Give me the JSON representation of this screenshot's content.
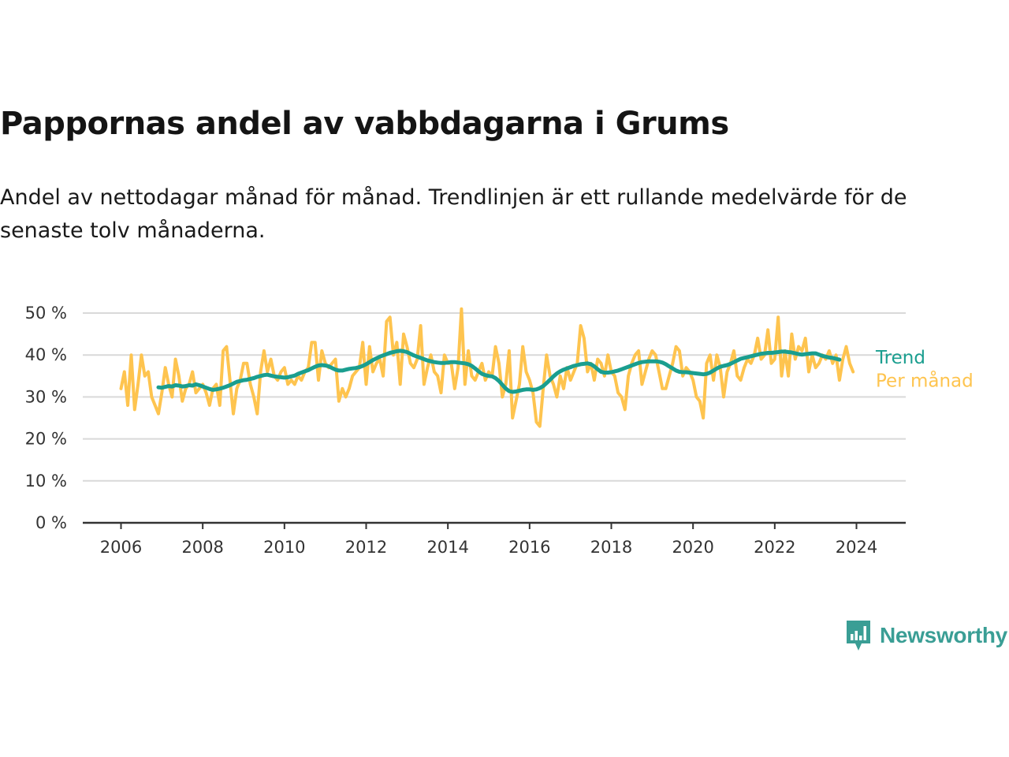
{
  "header": {
    "title": "Pappornas andel av vabbdagarna i Grums",
    "subtitle": "Andel av nettodagar månad för månad. Trendlinjen är ett rullande medelvärde för de senaste tolv månaderna."
  },
  "brand": {
    "name": "Newsworthy",
    "icon": "newsworthy-logo-icon",
    "color": "#3a9e95"
  },
  "chart_data": {
    "type": "line",
    "title": "Pappornas andel av vabbdagarna i Grums",
    "xlabel": "",
    "ylabel": "",
    "xlim": [
      "2006-01",
      "2024-05"
    ],
    "ylim": [
      0,
      50
    ],
    "x_ticks": [
      "2006",
      "2008",
      "2010",
      "2012",
      "2014",
      "2016",
      "2018",
      "2020",
      "2022",
      "2024"
    ],
    "y_ticks": [
      "0 %",
      "10 %",
      "20 %",
      "30 %",
      "40 %",
      "50 %"
    ],
    "grid": true,
    "legend_placement": "direct labels at line ends, right",
    "series": [
      {
        "name": "Per månad",
        "color": "#fec44f",
        "start": "2006-01",
        "values": [
          32,
          36,
          28,
          40,
          27,
          33,
          40,
          35,
          36,
          30,
          28,
          26,
          31,
          37,
          33,
          30,
          39,
          35,
          29,
          32,
          33,
          36,
          31,
          32,
          33,
          31,
          28,
          32,
          33,
          28,
          41,
          42,
          34,
          26,
          32,
          34,
          38,
          38,
          33,
          30,
          26,
          36,
          41,
          36,
          39,
          35,
          34,
          36,
          37,
          33,
          34,
          33,
          35,
          34,
          36,
          37,
          43,
          43,
          34,
          41,
          38,
          37,
          38,
          39,
          29,
          32,
          30,
          32,
          35,
          36,
          37,
          43,
          33,
          42,
          36,
          38,
          39,
          35,
          48,
          49,
          40,
          43,
          33,
          45,
          42,
          38,
          37,
          39,
          47,
          33,
          37,
          40,
          36,
          35,
          31,
          40,
          38,
          38,
          32,
          37,
          51,
          33,
          41,
          35,
          34,
          36,
          38,
          34,
          36,
          35,
          42,
          38,
          30,
          33,
          41,
          25,
          29,
          33,
          42,
          36,
          34,
          31,
          24,
          23,
          32,
          40,
          35,
          33,
          30,
          35,
          32,
          37,
          34,
          36,
          38,
          47,
          44,
          36,
          38,
          34,
          39,
          38,
          35,
          40,
          36,
          35,
          31,
          30,
          27,
          35,
          38,
          40,
          41,
          33,
          36,
          39,
          41,
          40,
          36,
          32,
          32,
          35,
          38,
          42,
          41,
          35,
          37,
          36,
          34,
          30,
          29,
          25,
          38,
          40,
          34,
          40,
          37,
          30,
          36,
          38,
          41,
          35,
          34,
          37,
          39,
          38,
          40,
          44,
          39,
          40,
          46,
          38,
          39,
          49,
          35,
          41,
          35,
          45,
          39,
          42,
          41,
          44,
          36,
          40,
          37,
          38,
          40,
          39,
          41,
          38,
          40,
          34,
          39,
          42,
          38,
          36
        ]
      },
      {
        "name": "Trend",
        "color": "#1a9e8f",
        "start": "2006-12",
        "values": [
          32.3,
          32.2,
          32.4,
          32.6,
          32.5,
          32.8,
          32.7,
          32.5,
          32.6,
          32.8,
          32.7,
          33.0,
          32.8,
          32.5,
          32.2,
          31.9,
          31.7,
          31.8,
          32.0,
          32.2,
          32.5,
          32.8,
          33.2,
          33.6,
          33.8,
          34.0,
          34.1,
          34.3,
          34.5,
          34.8,
          35.0,
          35.2,
          35.3,
          35.1,
          34.9,
          34.8,
          34.7,
          34.6,
          34.7,
          34.9,
          35.1,
          35.5,
          35.8,
          36.1,
          36.4,
          36.8,
          37.2,
          37.5,
          37.6,
          37.5,
          37.3,
          36.9,
          36.5,
          36.3,
          36.3,
          36.5,
          36.7,
          36.8,
          36.9,
          37.1,
          37.4,
          37.8,
          38.3,
          38.8,
          39.2,
          39.6,
          39.9,
          40.2,
          40.5,
          40.7,
          40.9,
          41.0,
          40.9,
          40.7,
          40.3,
          39.9,
          39.6,
          39.3,
          39.0,
          38.7,
          38.5,
          38.3,
          38.2,
          38.1,
          38.1,
          38.2,
          38.3,
          38.3,
          38.2,
          38.1,
          38.0,
          37.8,
          37.4,
          36.8,
          36.1,
          35.5,
          35.2,
          35.0,
          34.9,
          34.5,
          33.8,
          32.9,
          32.0,
          31.4,
          31.2,
          31.3,
          31.5,
          31.7,
          31.8,
          31.8,
          31.7,
          31.8,
          32.1,
          32.6,
          33.3,
          34.1,
          34.9,
          35.6,
          36.1,
          36.5,
          36.8,
          37.1,
          37.4,
          37.6,
          37.8,
          37.9,
          38.0,
          37.8,
          37.3,
          36.6,
          36.0,
          35.8,
          35.8,
          35.9,
          36.1,
          36.3,
          36.6,
          36.9,
          37.2,
          37.5,
          37.8,
          38.1,
          38.3,
          38.4,
          38.5,
          38.5,
          38.5,
          38.4,
          38.2,
          37.8,
          37.3,
          36.8,
          36.3,
          36.0,
          35.9,
          35.9,
          35.8,
          35.7,
          35.6,
          35.5,
          35.4,
          35.5,
          35.8,
          36.3,
          36.8,
          37.2,
          37.4,
          37.6,
          37.9,
          38.3,
          38.7,
          39.1,
          39.3,
          39.5,
          39.7,
          39.9,
          40.1,
          40.3,
          40.4,
          40.5,
          40.5,
          40.6,
          40.7,
          40.8,
          40.8,
          40.7,
          40.6,
          40.4,
          40.2,
          40.1,
          40.2,
          40.3,
          40.4,
          40.4,
          40.1,
          39.8,
          39.6,
          39.4,
          39.3,
          39.1,
          38.9
        ]
      }
    ]
  }
}
